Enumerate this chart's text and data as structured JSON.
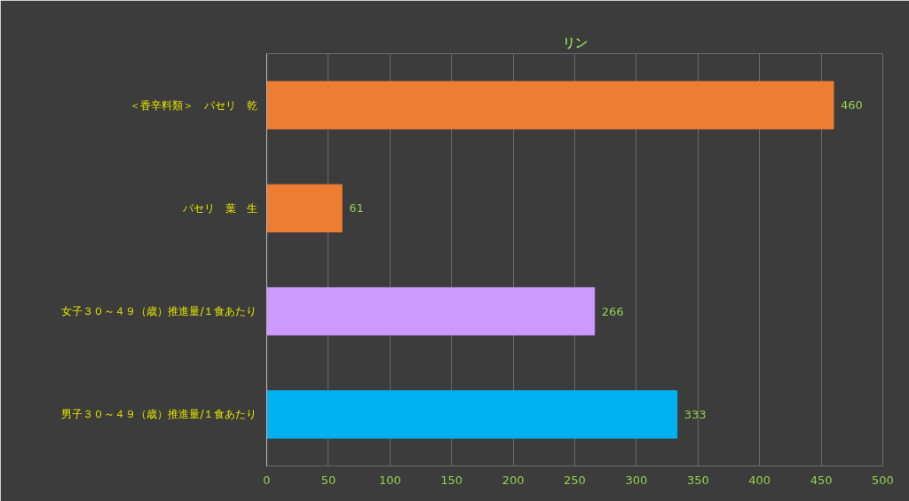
{
  "chart_data": {
    "type": "bar",
    "orientation": "horizontal",
    "title": "リン",
    "categories": [
      "＜香辛料類＞　パセリ　乾",
      "パセリ　葉　生",
      "女子３０～４９（歳）推進量/１食あたり",
      "男子３０～４９（歳）推進量/１食あたり"
    ],
    "values": [
      460,
      61,
      266,
      333
    ],
    "colors": [
      "#ed7d31",
      "#ed7d31",
      "#cc99ff",
      "#00b0f0"
    ],
    "data_labels": true,
    "xlim": [
      0,
      500
    ],
    "xticks": [
      0,
      50,
      100,
      150,
      200,
      250,
      300,
      350,
      400,
      450,
      500
    ],
    "grid": "x"
  }
}
